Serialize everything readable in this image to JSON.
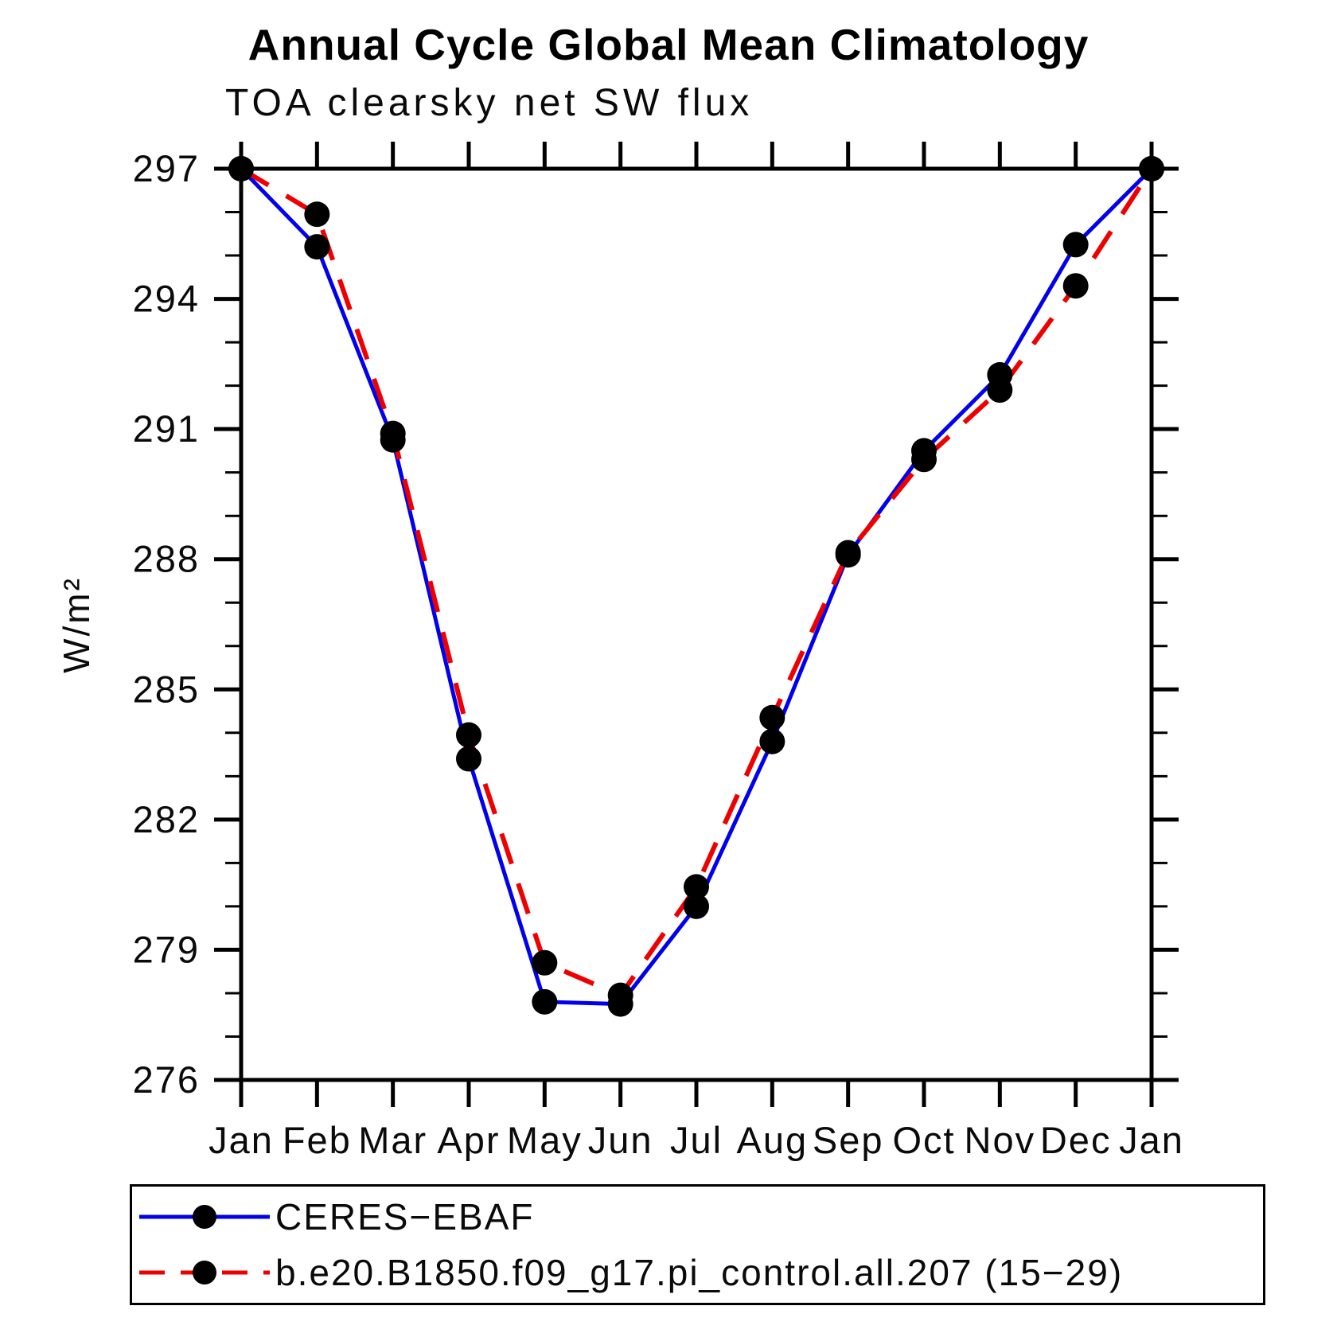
{
  "chart_data": {
    "type": "line",
    "title": "Annual Cycle Global Mean Climatology",
    "subtitle": "TOA clearsky net SW flux",
    "ylabel": "W/m²",
    "xlabel": "",
    "categories": [
      "Jan",
      "Feb",
      "Mar",
      "Apr",
      "May",
      "Jun",
      "Jul",
      "Aug",
      "Sep",
      "Oct",
      "Nov",
      "Dec",
      "Jan"
    ],
    "ylim": [
      276,
      297
    ],
    "yticks_major": [
      276,
      279,
      282,
      285,
      288,
      291,
      294,
      297
    ],
    "ytick_minor_step": 1,
    "grid": false,
    "legend_position": "bottom",
    "axis_color": "#000000",
    "series": [
      {
        "name": "CERES−EBAF",
        "color": "#0000ee",
        "style": "solid",
        "marker": "circle",
        "marker_color": "#000000",
        "values": [
          297.0,
          295.2,
          290.75,
          283.4,
          277.8,
          277.75,
          280.0,
          283.8,
          288.1,
          290.5,
          292.25,
          295.25,
          297.0
        ]
      },
      {
        "name": "b.e20.B1850.f09_g17.pi_control.all.207 (15−29)",
        "color": "#ee0000",
        "style": "dashed",
        "marker": "circle",
        "marker_color": "#000000",
        "values": [
          297.0,
          295.95,
          290.9,
          283.95,
          278.7,
          277.95,
          280.45,
          284.35,
          288.15,
          290.3,
          291.9,
          294.3,
          297.0
        ]
      }
    ]
  }
}
